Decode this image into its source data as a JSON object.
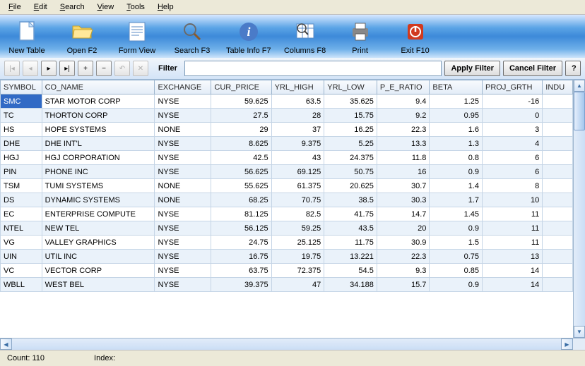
{
  "menu": {
    "items": [
      "File",
      "Edit",
      "Search",
      "View",
      "Tools",
      "Help"
    ]
  },
  "toolbar": {
    "buttons": [
      {
        "name": "new-table",
        "label": "New Table",
        "icon": "file"
      },
      {
        "name": "open",
        "label": "Open F2",
        "icon": "folder"
      },
      {
        "name": "form-view",
        "label": "Form View",
        "icon": "form"
      },
      {
        "name": "search",
        "label": "Search F3",
        "icon": "search"
      },
      {
        "name": "table-info",
        "label": "Table Info F7",
        "icon": "info"
      },
      {
        "name": "columns",
        "label": "Columns F8",
        "icon": "columns"
      },
      {
        "name": "print",
        "label": "Print",
        "icon": "print"
      },
      {
        "name": "exit",
        "label": "Exit F10",
        "icon": "exit"
      }
    ]
  },
  "filterbar": {
    "filter_label": "Filter",
    "filter_value": "",
    "apply_label": "Apply Filter",
    "cancel_label": "Cancel Filter",
    "help_label": "?"
  },
  "table": {
    "columns": [
      "SYMBOL",
      "CO_NAME",
      "EXCHANGE",
      "CUR_PRICE",
      "YRL_HIGH",
      "YRL_LOW",
      "P_E_RATIO",
      "BETA",
      "PROJ_GRTH",
      "INDU"
    ],
    "col_classes": [
      "col-symbol",
      "col-coname",
      "col-exchange",
      "col-curprice",
      "col-yrlhigh",
      "col-yrllow",
      "col-peratio",
      "col-beta",
      "col-projgrth",
      "col-indu"
    ],
    "col_align": [
      "left",
      "left",
      "left",
      "right",
      "right",
      "right",
      "right",
      "right",
      "right",
      "right"
    ],
    "selected_row": 0,
    "selected_col": 0,
    "rows": [
      [
        "SMC",
        "STAR MOTOR CORP",
        "NYSE",
        "59.625",
        "63.5",
        "35.625",
        "9.4",
        "1.25",
        "-16",
        ""
      ],
      [
        "TC",
        "THORTON CORP",
        "NYSE",
        "27.5",
        "28",
        "15.75",
        "9.2",
        "0.95",
        "0",
        ""
      ],
      [
        "HS",
        "HOPE SYSTEMS",
        "NONE",
        "29",
        "37",
        "16.25",
        "22.3",
        "1.6",
        "3",
        ""
      ],
      [
        "DHE",
        "DHE INT'L",
        "NYSE",
        "8.625",
        "9.375",
        "5.25",
        "13.3",
        "1.3",
        "4",
        ""
      ],
      [
        "HGJ",
        "HGJ CORPORATION",
        "NYSE",
        "42.5",
        "43",
        "24.375",
        "11.8",
        "0.8",
        "6",
        ""
      ],
      [
        "PIN",
        "PHONE INC",
        "NYSE",
        "56.625",
        "69.125",
        "50.75",
        "16",
        "0.9",
        "6",
        ""
      ],
      [
        "TSM",
        "TUMI SYSTEMS",
        "NONE",
        "55.625",
        "61.375",
        "20.625",
        "30.7",
        "1.4",
        "8",
        ""
      ],
      [
        "DS",
        "DYNAMIC SYSTEMS",
        "NONE",
        "68.25",
        "70.75",
        "38.5",
        "30.3",
        "1.7",
        "10",
        ""
      ],
      [
        "EC",
        "ENTERPRISE COMPUTE",
        "NYSE",
        "81.125",
        "82.5",
        "41.75",
        "14.7",
        "1.45",
        "11",
        ""
      ],
      [
        "NTEL",
        "NEW TEL",
        "NYSE",
        "56.125",
        "59.25",
        "43.5",
        "20",
        "0.9",
        "11",
        ""
      ],
      [
        "VG",
        "VALLEY GRAPHICS",
        "NYSE",
        "24.75",
        "25.125",
        "11.75",
        "30.9",
        "1.5",
        "11",
        ""
      ],
      [
        "UIN",
        "UTIL INC",
        "NYSE",
        "16.75",
        "19.75",
        "13.221",
        "22.3",
        "0.75",
        "13",
        ""
      ],
      [
        "VC",
        "VECTOR CORP",
        "NYSE",
        "63.75",
        "72.375",
        "54.5",
        "9.3",
        "0.85",
        "14",
        ""
      ],
      [
        "WBLL",
        "WEST BEL",
        "NYSE",
        "39.375",
        "47",
        "34.188",
        "15.7",
        "0.9",
        "14",
        ""
      ]
    ]
  },
  "statusbar": {
    "count_label": "Count:",
    "count_value": "110",
    "index_label": "Index:",
    "index_value": ""
  },
  "colors": {
    "toolbar_gradient": [
      "#d6e7ff",
      "#5ba4e6",
      "#3d8ad9",
      "#6fb0e9",
      "#cde4fb"
    ],
    "selection_bg": "#316ac5",
    "row_even_bg": "#eaf2fa",
    "row_odd_bg": "#ffffff",
    "header_bg": [
      "#f7fafd",
      "#e3ecf7"
    ],
    "border": "#9eb6ce"
  }
}
